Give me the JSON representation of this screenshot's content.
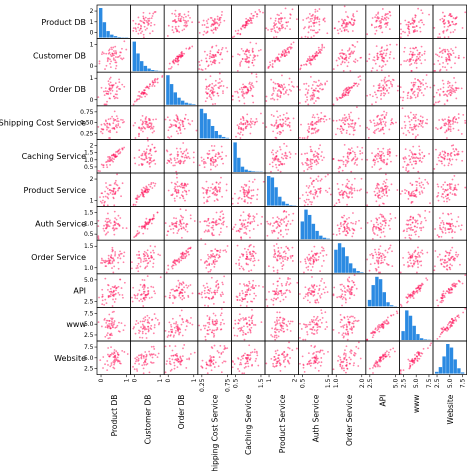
{
  "chart_data": {
    "type": "scatter",
    "kind": "scatter_matrix",
    "variables": [
      "Product DB",
      "Customer DB",
      "Order DB",
      "Shipping Cost Service",
      "Caching Service",
      "Product Service",
      "Auth Service",
      "Order Service",
      "API",
      "www",
      "Website"
    ],
    "diagonal": "histogram",
    "colors": {
      "scatter": "#ff1a5e",
      "histogram": "#2b8ae2"
    },
    "ranges": [
      [
        0,
        2
      ],
      [
        0,
        1.3
      ],
      [
        0,
        1.1
      ],
      [
        0.1,
        0.95
      ],
      [
        0,
        2
      ],
      [
        0,
        2.2
      ],
      [
        0.2,
        1.9
      ],
      [
        0.3,
        2.1
      ],
      [
        1.5,
        7.0
      ],
      [
        1.5,
        7.3
      ],
      [
        1.5,
        7.5
      ]
    ],
    "row_ticks": [
      [
        "0",
        "1",
        "2"
      ],
      [
        "0",
        "1"
      ],
      [
        "0",
        "1"
      ],
      [
        "0.25",
        "0.50",
        "0.75"
      ],
      [
        "0.5",
        "1.0",
        "1.5",
        "2"
      ],
      [
        "1",
        "2"
      ],
      [
        "0.5",
        "1.0",
        "1.5"
      ],
      [
        "1.0",
        "1.5"
      ],
      [
        "2.5",
        "5.0"
      ],
      [
        "2.5",
        "5.0",
        "7.5"
      ],
      [
        "2.5",
        "5.0",
        "7.5"
      ]
    ],
    "col_ticks": [
      [
        "0",
        "1"
      ],
      [
        "0",
        "1"
      ],
      [
        "0",
        "1"
      ],
      [
        "0.25",
        "0.75"
      ],
      [
        "0.5",
        "1.5"
      ],
      [
        "1",
        "2"
      ],
      [
        "0.5",
        "1.5"
      ],
      [
        "1.0",
        "2.0"
      ],
      [
        "2.5",
        "5.0"
      ],
      [
        "2.5",
        "5.0",
        "7.5"
      ],
      [
        "2.5",
        "5.0",
        "7.5"
      ]
    ],
    "histograms": [
      [
        100,
        52,
        22,
        10,
        5,
        2,
        1,
        1
      ],
      [
        100,
        60,
        34,
        18,
        9,
        4,
        2,
        1
      ],
      [
        100,
        70,
        42,
        24,
        14,
        7,
        4,
        2
      ],
      [
        100,
        85,
        65,
        42,
        25,
        12,
        5,
        2
      ],
      [
        100,
        48,
        18,
        8,
        4,
        2,
        1,
        1
      ],
      [
        100,
        95,
        62,
        30,
        14,
        6,
        2,
        1
      ],
      [
        60,
        100,
        82,
        52,
        28,
        12,
        5,
        2
      ],
      [
        78,
        100,
        86,
        56,
        32,
        15,
        6,
        2
      ],
      [
        22,
        72,
        100,
        92,
        48,
        14,
        4,
        1
      ],
      [
        30,
        100,
        82,
        48,
        20,
        6,
        2,
        1
      ],
      [
        6,
        22,
        58,
        100,
        88,
        48,
        18,
        4
      ]
    ],
    "strong_correlation_pairs": [
      [
        "Caching Service",
        "Product DB"
      ],
      [
        "Order DB",
        "Customer DB"
      ],
      [
        "Product Service",
        "Customer DB"
      ],
      [
        "Auth Service",
        "Customer DB"
      ],
      [
        "Order Service",
        "Order DB"
      ],
      [
        "API",
        "www"
      ],
      [
        "API",
        "Website"
      ],
      [
        "www",
        "Website"
      ]
    ]
  }
}
